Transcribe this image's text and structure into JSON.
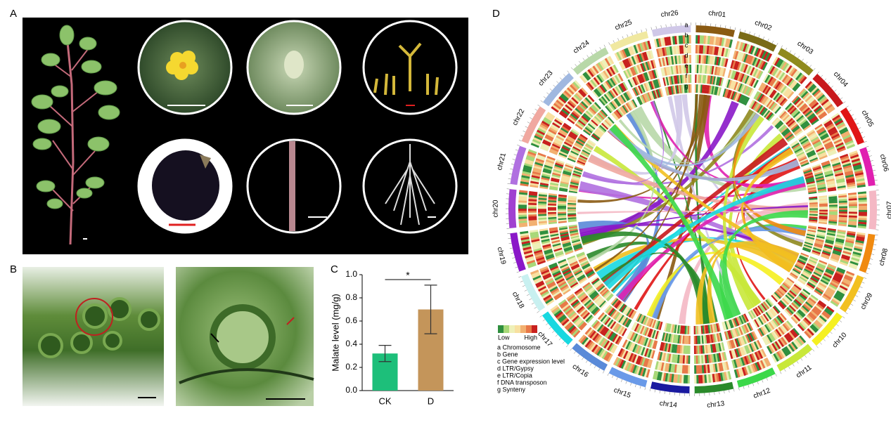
{
  "panels": {
    "a": "A",
    "b": "B",
    "c": "C",
    "d": "D"
  },
  "chart_data": {
    "type": "bar",
    "categories": [
      "CK",
      "D"
    ],
    "values": [
      0.32,
      0.7
    ],
    "errors": [
      0.07,
      0.21
    ],
    "colors": [
      "#1dbf7a",
      "#c4955a"
    ],
    "ylabel": "Malate level (mg/g)",
    "ylim": [
      0,
      1.0
    ],
    "yticks": [
      {
        "value": 0,
        "label": "0.0"
      },
      0.2,
      0.4,
      0.6,
      0.8,
      {
        "value": 1.0,
        "label": "1.0"
      }
    ],
    "significance": "*"
  },
  "circos": {
    "chromosomes": [
      {
        "label": "chr01",
        "color": "#8a5a12"
      },
      {
        "label": "chr02",
        "color": "#7a6b16"
      },
      {
        "label": "chr03",
        "color": "#8f8a1e"
      },
      {
        "label": "chr04",
        "color": "#c8181c"
      },
      {
        "label": "chr05",
        "color": "#e01515"
      },
      {
        "label": "chr06",
        "color": "#e020b0"
      },
      {
        "label": "chr07",
        "color": "#f4b8c4"
      },
      {
        "label": "chr08",
        "color": "#f08a10"
      },
      {
        "label": "chr09",
        "color": "#f2c020"
      },
      {
        "label": "chr10",
        "color": "#f5f020"
      },
      {
        "label": "chr11",
        "color": "#c8e83a"
      },
      {
        "label": "chr12",
        "color": "#3cd84a"
      },
      {
        "label": "chr13",
        "color": "#2a8a2a"
      },
      {
        "label": "chr14",
        "color": "#1a1aa0"
      },
      {
        "label": "chr15",
        "color": "#6a9ae8"
      },
      {
        "label": "chr16",
        "color": "#5a8ad8"
      },
      {
        "label": "chr17",
        "color": "#18d8e0"
      },
      {
        "label": "chr18",
        "color": "#c8f0f0"
      },
      {
        "label": "chr19",
        "color": "#8a18c8"
      },
      {
        "label": "chr20",
        "color": "#a040d0"
      },
      {
        "label": "chr21",
        "color": "#b070e0"
      },
      {
        "label": "chr22",
        "color": "#f0a8a0"
      },
      {
        "label": "chr23",
        "color": "#a0b8e0"
      },
      {
        "label": "chr24",
        "color": "#b8d8a8"
      },
      {
        "label": "chr25",
        "color": "#f0e8a0"
      },
      {
        "label": "chr26",
        "color": "#d0c8e8"
      }
    ],
    "tracks": [
      "a",
      "b",
      "c",
      "d",
      "e",
      "f",
      "g"
    ],
    "legend": {
      "low": "Low",
      "high": "High",
      "items": [
        "a Chromosome",
        "b Gene",
        "c Gene expression level",
        "d LTR/Gypsy",
        "e LTR/Copia",
        "f DNA transposon",
        "g Synteny"
      ]
    }
  }
}
